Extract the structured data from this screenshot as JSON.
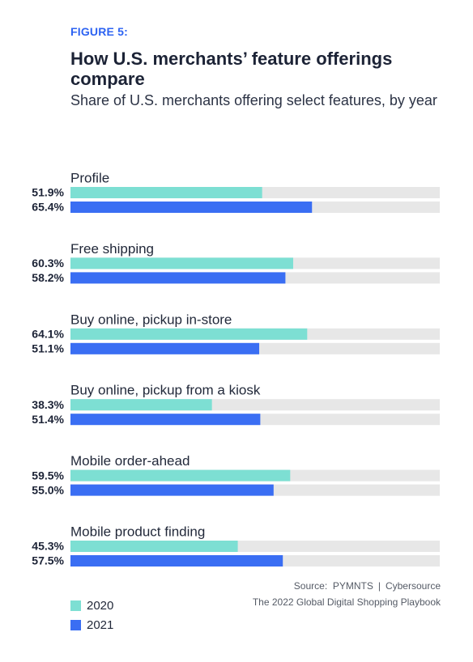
{
  "figure_label": "FIGURE 5:",
  "source": {
    "prefix": "Source:",
    "left": "PYMNTS",
    "separator": "|",
    "right": "Cybersource",
    "report": "The 2022 Global Digital Shopping Playbook"
  },
  "colors": {
    "series_2020": "#7ddfd3",
    "series_2021": "#3a6ef3",
    "track": "#e7e7e7",
    "accent": "#2d63f2"
  },
  "chart_data": {
    "type": "bar",
    "orientation": "horizontal",
    "title": "How U.S. merchants’ feature offerings compare",
    "subtitle": "Share of U.S. merchants offering select features, by year",
    "xlim": [
      0,
      100
    ],
    "grid": false,
    "legend_position": "bottom-left",
    "categories": [
      "Profile",
      "Free shipping",
      "Buy online, pickup in-store",
      "Buy online, pickup from a kiosk",
      "Mobile order-ahead",
      "Mobile product finding"
    ],
    "series": [
      {
        "name": "2020",
        "color": "#7ddfd3",
        "values": [
          51.9,
          60.3,
          64.1,
          38.3,
          59.5,
          45.3
        ],
        "labels": [
          "51.9%",
          "60.3%",
          "64.1%",
          "38.3%",
          "59.5%",
          "45.3%"
        ]
      },
      {
        "name": "2021",
        "color": "#3a6ef3",
        "values": [
          65.4,
          58.2,
          51.1,
          51.4,
          55.0,
          57.5
        ],
        "labels": [
          "65.4%",
          "58.2%",
          "51.1%",
          "51.4%",
          "55.0%",
          "57.5%"
        ]
      }
    ]
  }
}
